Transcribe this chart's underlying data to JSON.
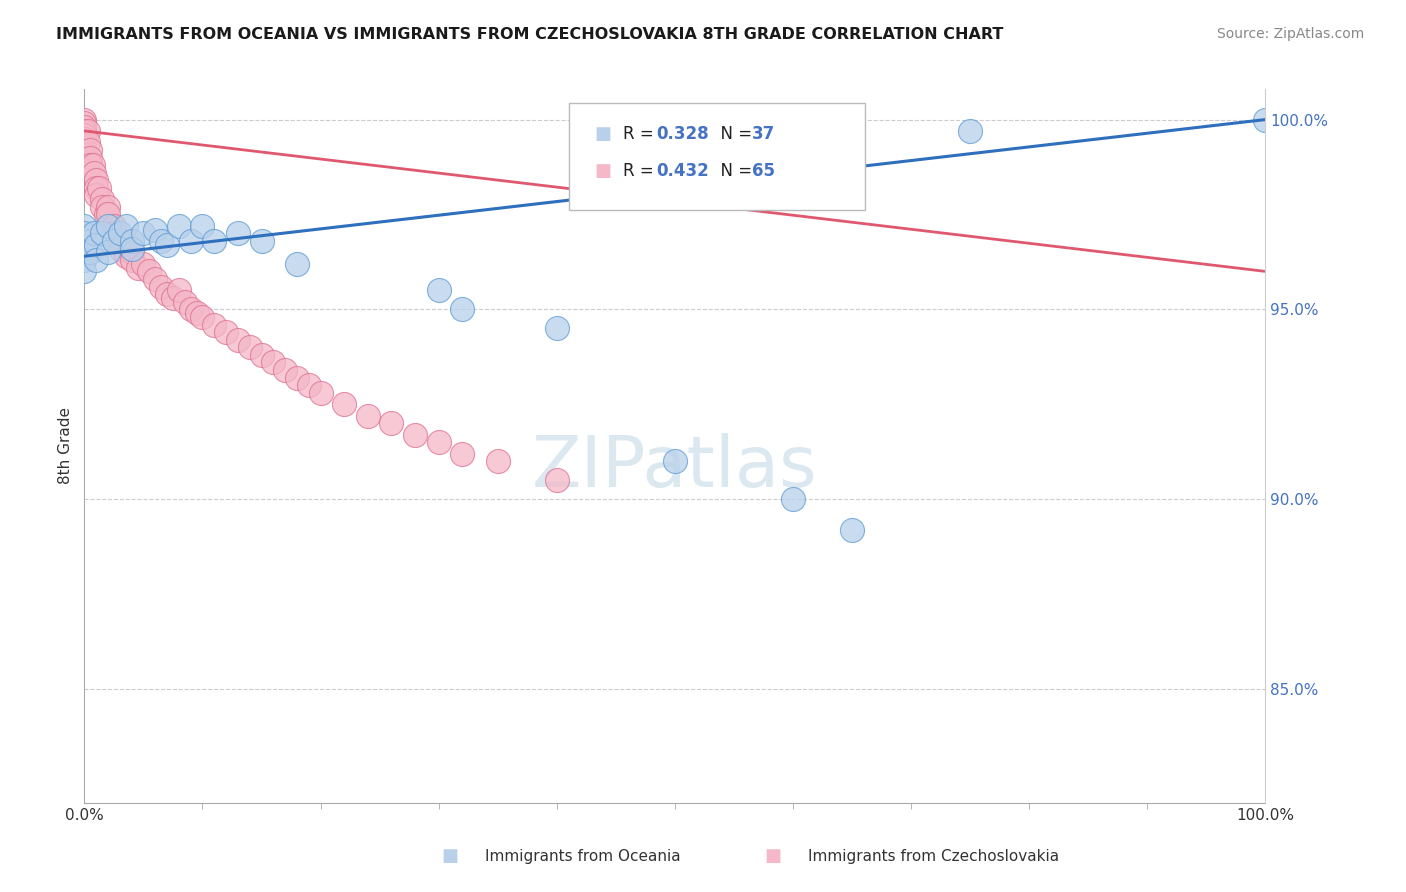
{
  "title": "IMMIGRANTS FROM OCEANIA VS IMMIGRANTS FROM CZECHOSLOVAKIA 8TH GRADE CORRELATION CHART",
  "source": "Source: ZipAtlas.com",
  "xlabel_oceania": "Immigrants from Oceania",
  "xlabel_czechoslovakia": "Immigrants from Czechoslovakia",
  "ylabel": "8th Grade",
  "xlim": [
    0.0,
    1.0
  ],
  "ylim": [
    0.82,
    1.008
  ],
  "yticks": [
    0.85,
    0.9,
    0.95,
    1.0
  ],
  "ytick_labels": [
    "85.0%",
    "90.0%",
    "95.0%",
    "100.0%"
  ],
  "xticks": [
    0.0,
    1.0
  ],
  "xtick_labels": [
    "0.0%",
    "100.0%"
  ],
  "legend_r1": "R = 0.328",
  "legend_n1": "N = 37",
  "legend_r2": "R = 0.432",
  "legend_n2": "N = 65",
  "color_oceania_fill": "#b8d0ea",
  "color_oceania_edge": "#5b9bd5",
  "color_czechoslovakia_fill": "#f4b8c8",
  "color_czechoslovakia_edge": "#e07090",
  "color_line_oceania": "#2e6fbe",
  "color_line_czechoslovakia": "#e05870",
  "color_text_blue": "#4472c4",
  "background_color": "#ffffff",
  "grid_color": "#cccccc",
  "watermark_color": "#dce8f0",
  "oceania_x": [
    0.0,
    0.0,
    0.0,
    0.0,
    0.0,
    0.005,
    0.005,
    0.008,
    0.01,
    0.01,
    0.015,
    0.02,
    0.02,
    0.025,
    0.03,
    0.035,
    0.04,
    0.04,
    0.05,
    0.06,
    0.065,
    0.07,
    0.08,
    0.09,
    0.1,
    0.11,
    0.13,
    0.15,
    0.18,
    0.3,
    0.32,
    0.4,
    0.5,
    0.6,
    0.65,
    0.75,
    1.0
  ],
  "oceania_y": [
    0.972,
    0.97,
    0.966,
    0.963,
    0.96,
    0.968,
    0.965,
    0.97,
    0.967,
    0.963,
    0.97,
    0.965,
    0.972,
    0.968,
    0.97,
    0.972,
    0.968,
    0.966,
    0.97,
    0.971,
    0.968,
    0.967,
    0.972,
    0.968,
    0.972,
    0.968,
    0.97,
    0.968,
    0.962,
    0.955,
    0.95,
    0.945,
    0.91,
    0.9,
    0.892,
    0.997,
    1.0
  ],
  "czechoslovakia_x": [
    0.0,
    0.0,
    0.0,
    0.0,
    0.0,
    0.0,
    0.0,
    0.0,
    0.0,
    0.0,
    0.0,
    0.0,
    0.003,
    0.003,
    0.005,
    0.005,
    0.005,
    0.007,
    0.008,
    0.01,
    0.01,
    0.01,
    0.012,
    0.015,
    0.015,
    0.018,
    0.02,
    0.02,
    0.025,
    0.025,
    0.03,
    0.03,
    0.035,
    0.04,
    0.04,
    0.045,
    0.05,
    0.055,
    0.06,
    0.065,
    0.07,
    0.075,
    0.08,
    0.085,
    0.09,
    0.095,
    0.1,
    0.11,
    0.12,
    0.13,
    0.14,
    0.15,
    0.16,
    0.17,
    0.18,
    0.19,
    0.2,
    0.22,
    0.24,
    0.26,
    0.28,
    0.3,
    0.32,
    0.35,
    0.4
  ],
  "czechoslovakia_y": [
    1.0,
    0.999,
    0.998,
    0.997,
    0.996,
    0.995,
    0.994,
    0.993,
    0.992,
    0.991,
    0.99,
    0.989,
    0.997,
    0.994,
    0.992,
    0.99,
    0.988,
    0.988,
    0.986,
    0.984,
    0.982,
    0.98,
    0.982,
    0.979,
    0.977,
    0.975,
    0.977,
    0.975,
    0.972,
    0.97,
    0.968,
    0.966,
    0.964,
    0.965,
    0.963,
    0.961,
    0.962,
    0.96,
    0.958,
    0.956,
    0.954,
    0.953,
    0.955,
    0.952,
    0.95,
    0.949,
    0.948,
    0.946,
    0.944,
    0.942,
    0.94,
    0.938,
    0.936,
    0.934,
    0.932,
    0.93,
    0.928,
    0.925,
    0.922,
    0.92,
    0.917,
    0.915,
    0.912,
    0.91,
    0.905
  ]
}
